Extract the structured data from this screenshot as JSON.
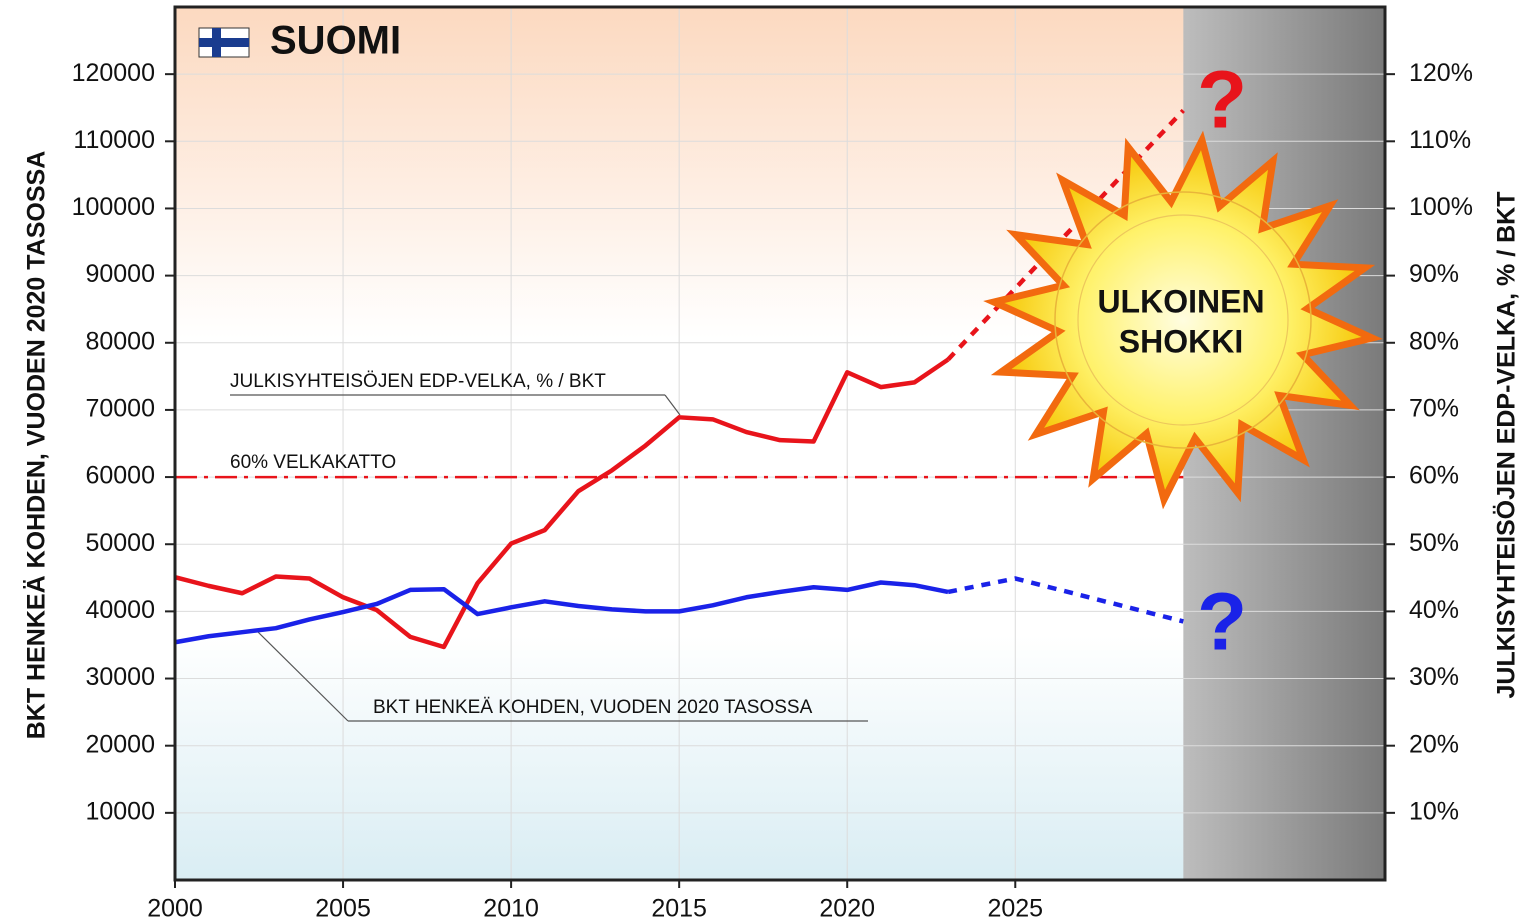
{
  "chart_data": {
    "type": "line",
    "title": "SUOMI",
    "ylabel": "BKT HENKEÄ KOHDEN, VUODEN 2020 TASOSSA",
    "y2label": "JULKISYHTEISÖJEN EDP-VELKA, % / BKT",
    "x": [
      2000,
      2001,
      2002,
      2003,
      2004,
      2005,
      2006,
      2007,
      2008,
      2009,
      2010,
      2011,
      2012,
      2013,
      2014,
      2015,
      2016,
      2017,
      2018,
      2019,
      2020,
      2021,
      2022,
      2023,
      2024,
      2025,
      2026,
      2027,
      2028,
      2029,
      2030
    ],
    "series": [
      {
        "name": "JULKISYHTEISÖJEN EDP-VELKA, % / BKT",
        "color": "#e8141b",
        "axis": "y2",
        "values": [
          45.1,
          43.8,
          42.7,
          45.2,
          44.9,
          42.1,
          40.2,
          36.2,
          34.7,
          44.2,
          50.1,
          52.1,
          57.9,
          61,
          64.7,
          68.9,
          68.6,
          66.7,
          65.5,
          65.3,
          75.6,
          73.4,
          74.1,
          77.5,
          null,
          null,
          null,
          null,
          null,
          null,
          null
        ],
        "projected": [
          null,
          null,
          null,
          null,
          null,
          null,
          null,
          null,
          null,
          null,
          null,
          null,
          null,
          null,
          null,
          null,
          null,
          null,
          null,
          null,
          null,
          null,
          null,
          77.5,
          null,
          null,
          null,
          null,
          null,
          null,
          114.6
        ]
      },
      {
        "name": "BKT HENKEÄ KOHDEN, VUODEN 2020 TASOSSA",
        "color": "#1a22e8",
        "axis": "y",
        "values": [
          35400,
          36300,
          36900,
          37500,
          38800,
          39900,
          41100,
          43200,
          43300,
          39600,
          40600,
          41500,
          40800,
          40300,
          40000,
          40000,
          40900,
          42100,
          42900,
          43600,
          43200,
          44300,
          43900,
          42900,
          null,
          null,
          null,
          null,
          null,
          null,
          null
        ],
        "projected": [
          null,
          null,
          null,
          null,
          null,
          null,
          null,
          null,
          null,
          null,
          null,
          null,
          null,
          null,
          null,
          null,
          null,
          null,
          null,
          null,
          null,
          null,
          null,
          42900,
          null,
          44900,
          null,
          null,
          null,
          null,
          38500
        ]
      }
    ],
    "threshold": {
      "label": "60% VELKAKATTO",
      "value": 60,
      "axis": "y2",
      "color": "#e8141b"
    },
    "question_mark": "?",
    "shock_label": [
      "ULKOINEN",
      "SHOKKI"
    ],
    "xlim": [
      2000,
      2036
    ],
    "xticks": [
      2000,
      2005,
      2010,
      2015,
      2020,
      2025
    ],
    "ylim": [
      0,
      130000
    ],
    "yticks": [
      10000,
      20000,
      30000,
      40000,
      50000,
      60000,
      70000,
      80000,
      90000,
      100000,
      110000,
      120000
    ],
    "y2lim": [
      0,
      130
    ],
    "y2ticks": [
      {
        "value": 10,
        "label": "10%"
      },
      {
        "value": 20,
        "label": "20%"
      },
      {
        "value": 30,
        "label": "30%"
      },
      {
        "value": 40,
        "label": "40%"
      },
      {
        "value": 50,
        "label": "50%"
      },
      {
        "value": 60,
        "label": "60%"
      },
      {
        "value": 70,
        "label": "70%"
      },
      {
        "value": 80,
        "label": "80%"
      },
      {
        "value": 90,
        "label": "90%"
      },
      {
        "value": 100,
        "label": "100%"
      },
      {
        "value": 110,
        "label": "110%"
      },
      {
        "value": 120,
        "label": "120%"
      }
    ],
    "grid": true
  }
}
